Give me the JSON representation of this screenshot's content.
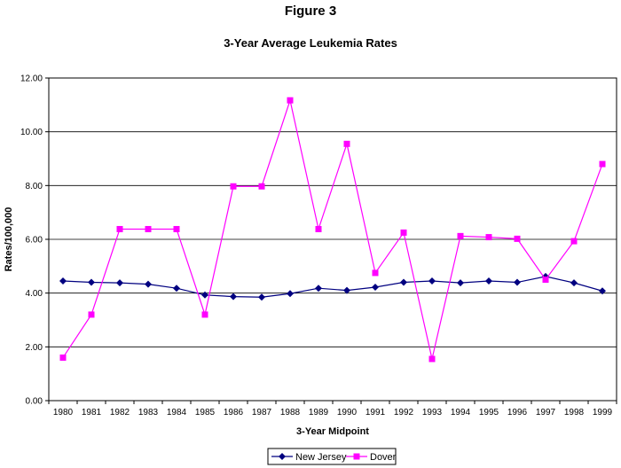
{
  "figure_label": "Figure 3",
  "chart_data": {
    "type": "line",
    "title": "3-Year Average Leukemia Rates",
    "xlabel": "3-Year Midpoint",
    "ylabel": "Rates/100,000",
    "ylim": [
      0,
      12
    ],
    "y_ticks": [
      "0.00",
      "2.00",
      "4.00",
      "6.00",
      "8.00",
      "10.00",
      "12.00"
    ],
    "grid": true,
    "legend_position": "bottom-center",
    "categories": [
      "1980",
      "1981",
      "1982",
      "1983",
      "1984",
      "1985",
      "1986",
      "1987",
      "1988",
      "1989",
      "1990",
      "1991",
      "1992",
      "1993",
      "1994",
      "1995",
      "1996",
      "1997",
      "1998",
      "1999"
    ],
    "series": [
      {
        "name": "New Jersey",
        "color": "#000080",
        "marker": "diamond",
        "values": [
          4.45,
          4.4,
          4.38,
          4.33,
          4.18,
          3.93,
          3.87,
          3.85,
          3.98,
          4.18,
          4.1,
          4.22,
          4.4,
          4.45,
          4.38,
          4.45,
          4.4,
          4.62,
          4.38,
          4.08
        ]
      },
      {
        "name": "Dover",
        "color": "#ff00ff",
        "marker": "square",
        "values": [
          1.6,
          3.2,
          6.38,
          6.38,
          6.38,
          3.2,
          7.97,
          7.97,
          11.17,
          6.38,
          9.55,
          4.75,
          6.25,
          1.55,
          6.12,
          6.08,
          6.02,
          4.5,
          5.93,
          8.8
        ]
      }
    ]
  }
}
